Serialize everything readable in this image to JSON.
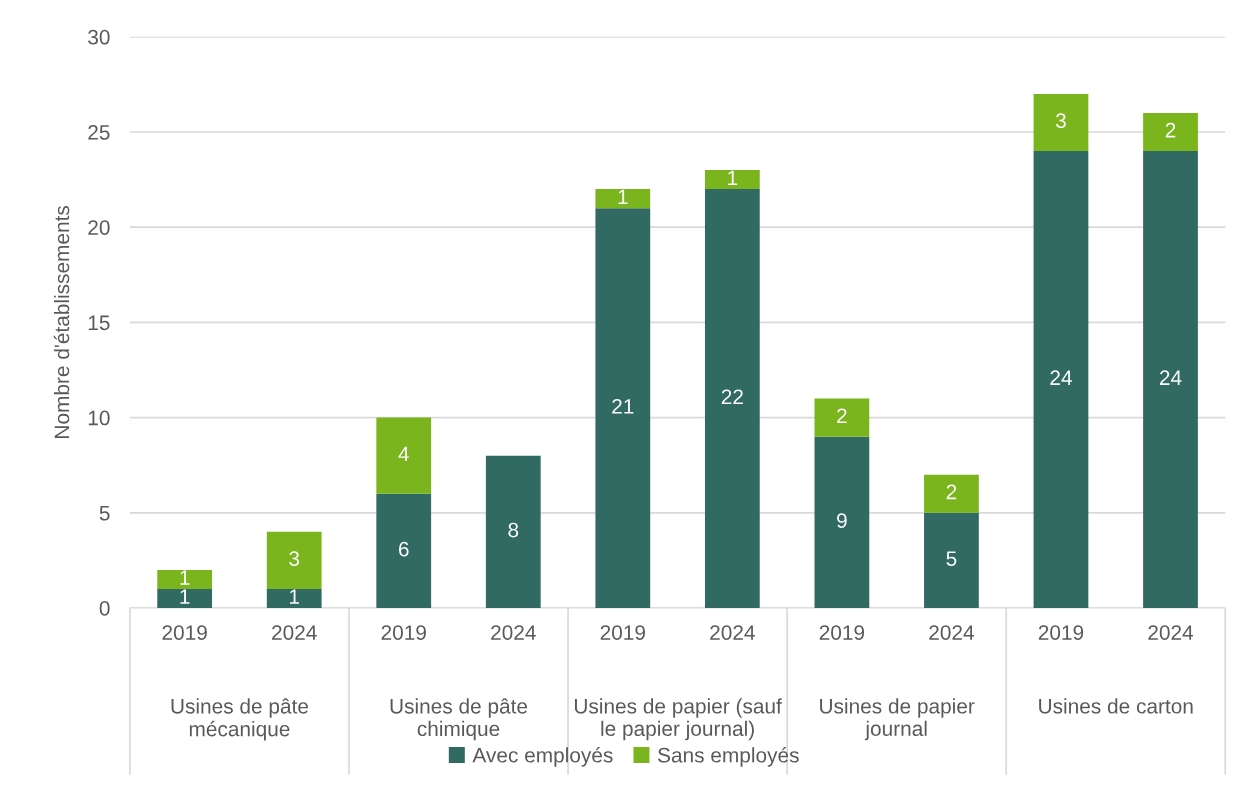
{
  "chart_data": {
    "type": "bar",
    "stacked": true,
    "ylabel": "Nombre d'établissements",
    "categories": [
      "2019",
      "2024",
      "2019",
      "2024",
      "2019",
      "2024",
      "2019",
      "2024",
      "2019",
      "2024"
    ],
    "annotations": [
      "Usines de pâte\nmécanique",
      "Usines de pâte\nchimique",
      "Usines de papier (sauf\nle papier journal)",
      "Usines de papier\njournal",
      "Usines de carton"
    ],
    "series": [
      {
        "name": "Avec employés",
        "color": "#316a62",
        "values": [
          1,
          1,
          6,
          8,
          21,
          22,
          9,
          5,
          24,
          24
        ]
      },
      {
        "name": "Sans employés",
        "color": "#7ab51d",
        "values": [
          1,
          3,
          4,
          null,
          1,
          1,
          2,
          2,
          3,
          2
        ]
      }
    ],
    "ylim": [
      0,
      30
    ],
    "yticks": [
      0,
      5,
      10,
      15,
      20,
      25,
      30
    ],
    "grid": "y",
    "legend": "bottom",
    "data_labels": true
  }
}
